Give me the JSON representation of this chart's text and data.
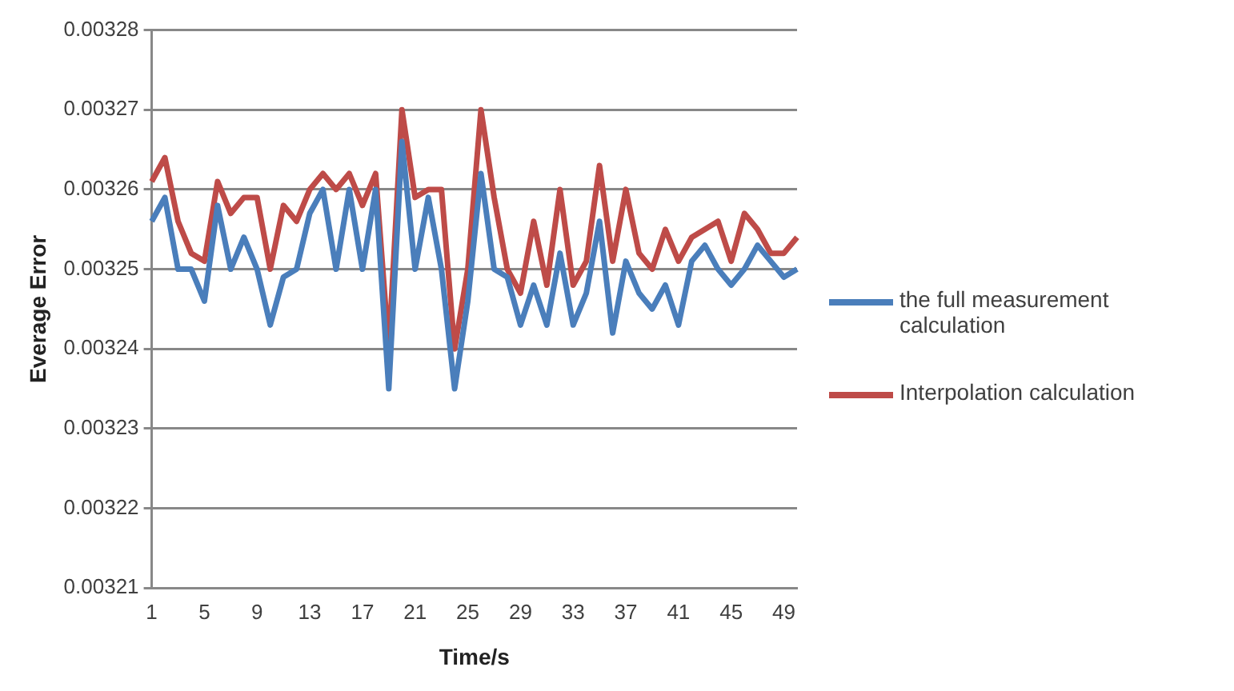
{
  "chart_data": {
    "type": "line",
    "xlabel": "Time/s",
    "ylabel": "Everage Error",
    "categories": [
      "1",
      null,
      null,
      null,
      "5",
      null,
      null,
      null,
      "9",
      null,
      null,
      null,
      "13",
      null,
      null,
      null,
      "17",
      null,
      null,
      null,
      "21",
      null,
      null,
      null,
      "25",
      null,
      null,
      null,
      "29",
      null,
      null,
      null,
      "33",
      null,
      null,
      null,
      "37",
      null,
      null,
      null,
      "41",
      null,
      null,
      null,
      "45",
      null,
      null,
      null,
      "49",
      null
    ],
    "series": [
      {
        "name": "the full measurement calculation",
        "color": "#4a7ebb",
        "values": [
          0.003256,
          0.003259,
          0.00325,
          0.00325,
          0.003246,
          0.003258,
          0.00325,
          0.003254,
          0.00325,
          0.003243,
          0.003249,
          0.00325,
          0.003257,
          0.00326,
          0.00325,
          0.00326,
          0.00325,
          0.00326,
          0.003235,
          0.003266,
          0.00325,
          0.003259,
          0.00325,
          0.003235,
          0.003246,
          0.003262,
          0.00325,
          0.003249,
          0.003243,
          0.003248,
          0.003243,
          0.003252,
          0.003243,
          0.003247,
          0.003256,
          0.003242,
          0.003251,
          0.003247,
          0.003245,
          0.003248,
          0.003243,
          0.003251,
          0.003253,
          0.00325,
          0.003248,
          0.00325,
          0.003253,
          0.003251,
          0.003249,
          0.00325
        ]
      },
      {
        "name": "Interpolation calculation",
        "color": "#be4b48",
        "values": [
          0.003261,
          0.003264,
          0.003256,
          0.003252,
          0.003251,
          0.003261,
          0.003257,
          0.003259,
          0.003259,
          0.00325,
          0.003258,
          0.003256,
          0.00326,
          0.003262,
          0.00326,
          0.003262,
          0.003258,
          0.003262,
          0.00324,
          0.00327,
          0.003259,
          0.00326,
          0.00326,
          0.00324,
          0.00325,
          0.00327,
          0.003259,
          0.00325,
          0.003247,
          0.003256,
          0.003248,
          0.00326,
          0.003248,
          0.003251,
          0.003263,
          0.003251,
          0.00326,
          0.003252,
          0.00325,
          0.003255,
          0.003251,
          0.003254,
          0.003255,
          0.003256,
          0.003251,
          0.003257,
          0.003255,
          0.003252,
          0.003252,
          0.003254
        ]
      }
    ],
    "ylim": [
      0.00321,
      0.00328
    ],
    "yticks": [
      0.00321,
      0.00322,
      0.00323,
      0.00324,
      0.00325,
      0.00326,
      0.00327,
      0.00328
    ],
    "grid": "y",
    "legend": "right",
    "marker": "none",
    "line_style": "solid"
  }
}
